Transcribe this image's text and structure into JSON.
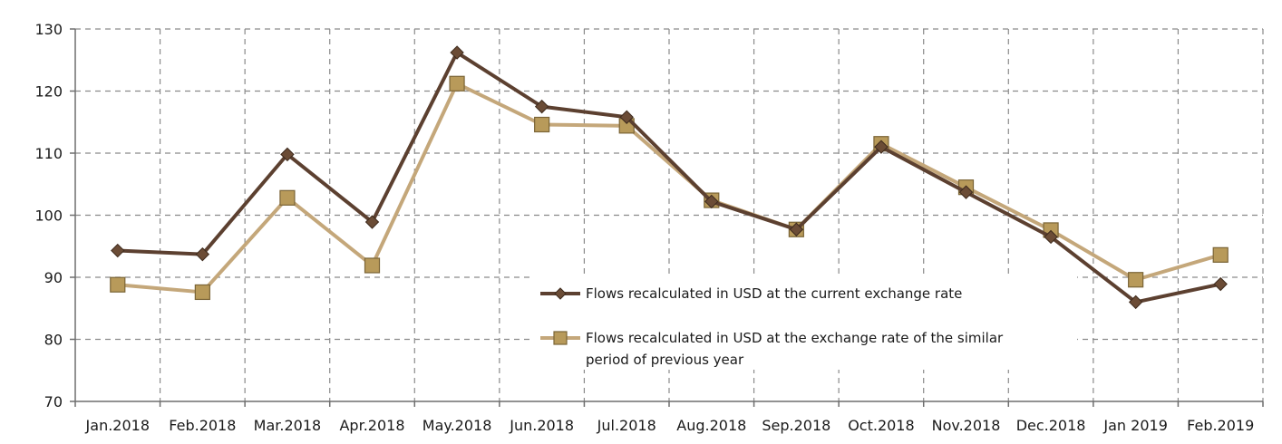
{
  "chart_data": {
    "type": "line",
    "title": "",
    "xlabel": "",
    "ylabel": "",
    "ylim": [
      70,
      130
    ],
    "yticks": [
      70,
      80,
      90,
      100,
      110,
      120,
      130
    ],
    "grid": true,
    "legend_position": "bottom-right inside",
    "categories": [
      "Jan.2018",
      "Feb.2018",
      "Mar.2018",
      "Apr.2018",
      "May.2018",
      "Jun.2018",
      "Jul.2018",
      "Aug.2018",
      "Sep.2018",
      "Oct.2018",
      "Nov.2018",
      "Dec.2018",
      "Jan 2019",
      "Feb.2019"
    ],
    "series": [
      {
        "name": "Flows recalculated in USD at the current exchange rate",
        "marker": "diamond",
        "color": "#5c4030",
        "values": [
          94.3,
          93.7,
          109.8,
          98.9,
          126.2,
          117.5,
          115.8,
          102.2,
          97.7,
          111.0,
          103.7,
          96.5,
          86.0,
          88.9
        ]
      },
      {
        "name": "Flows recalculated in USD at the exchange rate of the similar period of previous year",
        "name_lines": [
          "Flows recalculated in USD at the exchange rate of the similar",
          "period of previous year"
        ],
        "marker": "square",
        "color": "#c4a77a",
        "values": [
          88.8,
          87.6,
          102.8,
          91.9,
          121.2,
          114.6,
          114.4,
          102.4,
          97.7,
          111.5,
          104.5,
          97.6,
          89.6,
          93.6
        ]
      }
    ]
  }
}
